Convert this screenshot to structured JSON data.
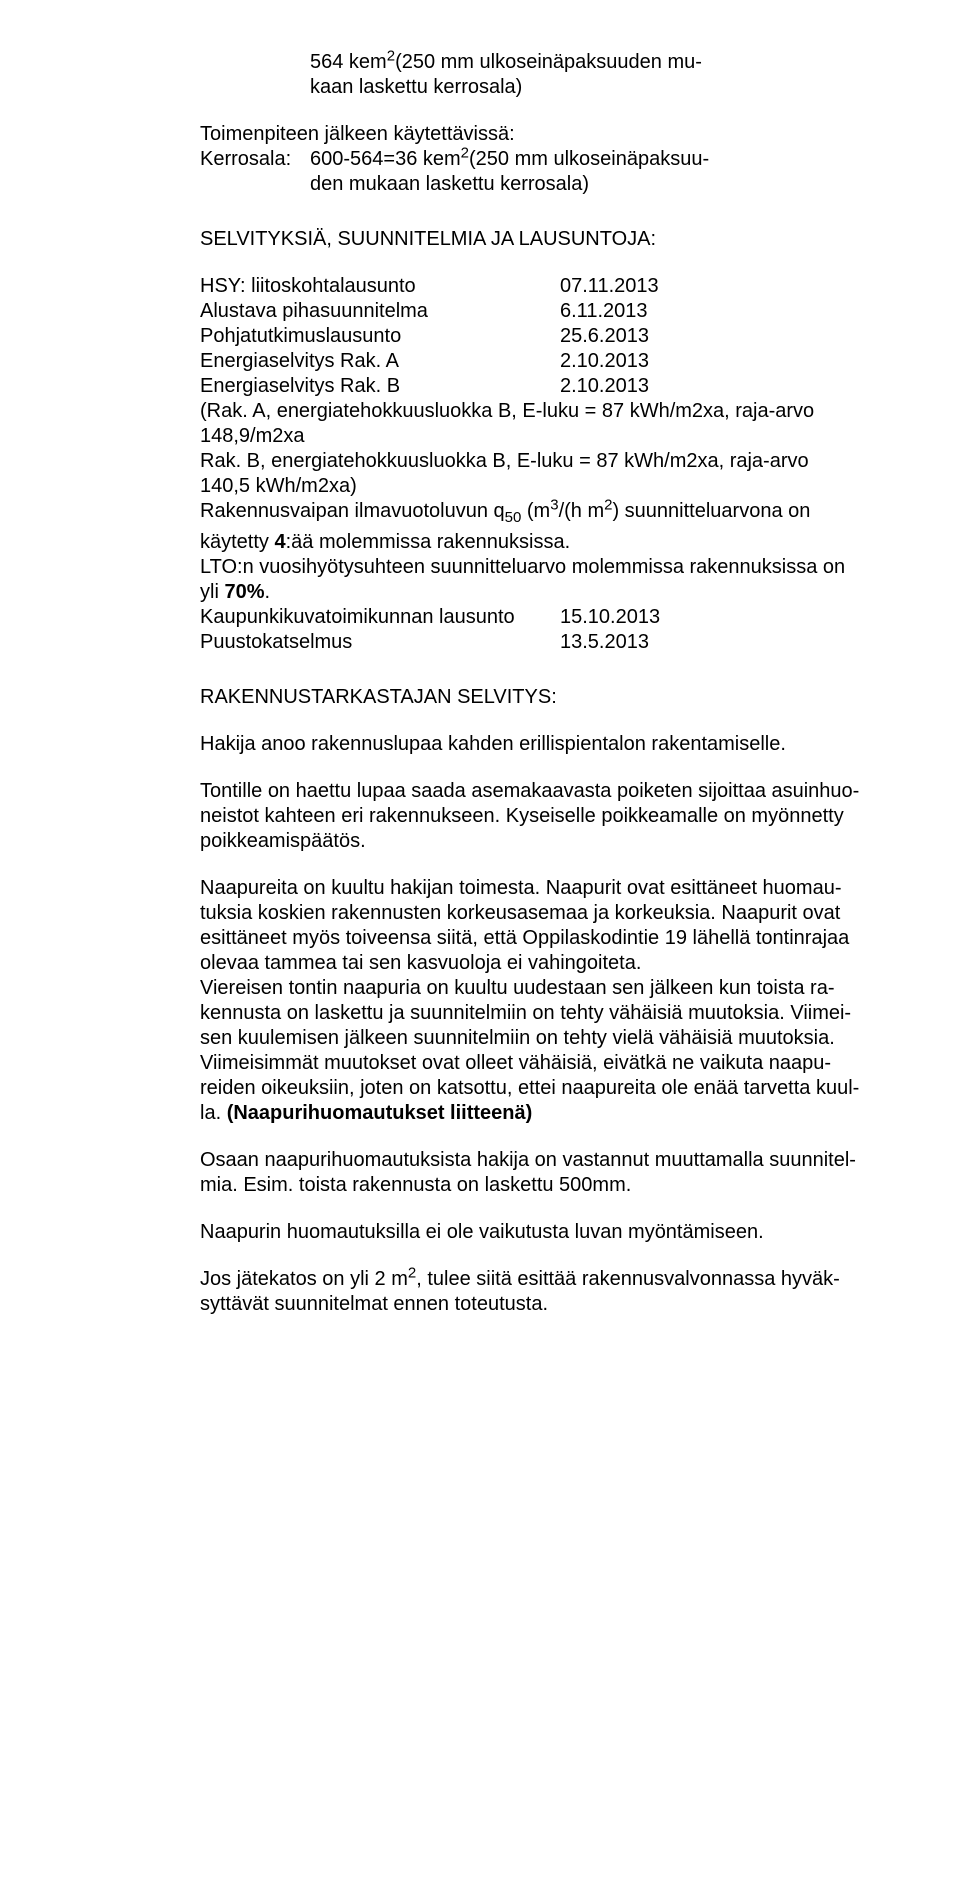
{
  "block1": {
    "line1a": "564 kem",
    "line1sup": "2",
    "line1b": "(250 mm ulkoseinäpaksuuden mu-",
    "line2": "kaan laskettu kerrosala)"
  },
  "block2": {
    "heading": "Toimenpiteen jälkeen käytettävissä:",
    "row_label": "Kerrosala:",
    "row_val_a": "600-564=36 kem",
    "row_val_sup": "2",
    "row_val_b": "(250 mm ulkoseinäpaksuu-",
    "row_val_line2": "den mukaan laskettu kerrosala)"
  },
  "block3": {
    "heading": "SELVITYKSIÄ, SUUNNITELMIA JA LAUSUNTOJA:",
    "rows": [
      {
        "label": "HSY: liitoskohtalausunto",
        "value": "07.11.2013"
      },
      {
        "label": "Alustava pihasuunnitelma",
        "value": "6.11.2013"
      },
      {
        "label": "Pohjatutkimuslausunto",
        "value": "25.6.2013"
      },
      {
        "label": "Energiaselvitys Rak. A",
        "value": "2.10.2013"
      },
      {
        "label": "Energiaselvitys Rak. B",
        "value": "2.10.2013"
      }
    ],
    "para1_l1": "(Rak. A, energiatehokkuusluokka B, E-luku = 87 kWh/m2xa, raja-arvo",
    "para1_l2": "148,9/m2xa",
    "para1_l3": "Rak. B, energiatehokkuusluokka B, E-luku = 87 kWh/m2xa, raja-arvo",
    "para1_l4": "140,5 kWh/m2xa)",
    "para2_a": "Rakennusvaipan ilmavuotoluvun q",
    "para2_sub": "50",
    "para2_b": "  (m",
    "para2_sup1": "3",
    "para2_c": "/(h m",
    "para2_sup2": "2",
    "para2_d": ") suunnitteluarvona on",
    "para3_a": "käytetty ",
    "para3_bold": "4",
    "para3_b": ":ää molemmissa rakennuksissa.",
    "para4_l1": "LTO:n vuosihyötysuhteen suunnitteluarvo molemmissa rakennuksissa on",
    "para4_l2a": "yli ",
    "para4_l2bold": "70%",
    "para4_l2b": ".",
    "rows2": [
      {
        "label": "Kaupunkikuvatoimikunnan lausunto",
        "value": "15.10.2013"
      },
      {
        "label": "Puustokatselmus",
        "value": "13.5.2013"
      }
    ]
  },
  "block4": {
    "heading": "RAKENNUSTARKASTAJAN SELVITYS:",
    "p1": "Hakija anoo rakennuslupaa kahden erillispientalon rakentamiselle.",
    "p2_l1": "Tontille on haettu lupaa saada asemakaavasta poiketen sijoittaa asuinhuo-",
    "p2_l2": "neistot kahteen eri rakennukseen. Kyseiselle poikkeamalle on myönnetty",
    "p2_l3": "poikkeamispäätös.",
    "p3_l1": "Naapureita on kuultu hakijan toimesta. Naapurit ovat esittäneet huomau-",
    "p3_l2": "tuksia koskien rakennusten korkeusasemaa ja korkeuksia. Naapurit ovat",
    "p3_l3": "esittäneet myös toiveensa siitä, että Oppilaskodintie 19 lähellä tontinrajaa",
    "p3_l4": "olevaa tammea tai sen kasvuoloja ei vahingoiteta.",
    "p3_l5": "Viereisen tontin naapuria on kuultu uudestaan sen jälkeen kun toista ra-",
    "p3_l6": "kennusta on laskettu ja suunnitelmiin on tehty vähäisiä muutoksia. Viimei-",
    "p3_l7": "sen kuulemisen jälkeen suunnitelmiin on tehty vielä vähäisiä muutoksia.",
    "p3_l8": "Viimeisimmät muutokset ovat olleet vähäisiä, eivätkä ne vaikuta naapu-",
    "p3_l9": "reiden oikeuksiin, joten on katsottu, ettei naapureita ole enää tarvetta kuul-",
    "p3_l10a": "la. ",
    "p3_l10bold": "(Naapurihuomautukset liitteenä)",
    "p4_l1": "Osaan naapurihuomautuksista hakija on vastannut muuttamalla suunnitel-",
    "p4_l2": "mia. Esim. toista rakennusta on laskettu 500mm.",
    "p5": "Naapurin huomautuksilla ei ole vaikutusta luvan myöntämiseen.",
    "p6_a": "Jos jätekatos on yli 2 m",
    "p6_sup": "2",
    "p6_b": ", tulee siitä esittää rakennusvalvonnassa hyväk-",
    "p6_l2": "syttävät suunnitelmat ennen toteutusta."
  }
}
